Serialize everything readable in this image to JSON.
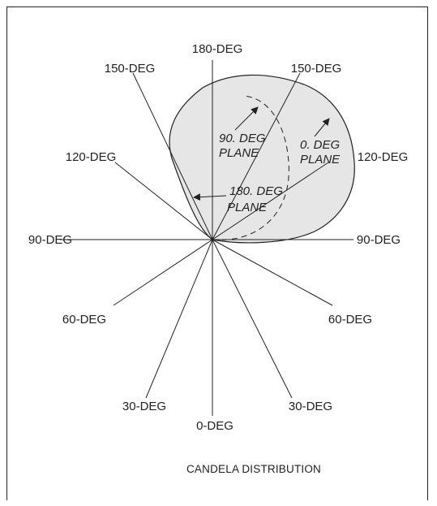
{
  "diagram": {
    "caption": "CANDELA DISTRIBUTION",
    "angle_labels": {
      "top": "180-DEG",
      "upper_left": "150-DEG",
      "upper_right": "150-DEG",
      "mid_upper_left": "120-DEG",
      "mid_upper_right": "120-DEG",
      "left": "90-DEG",
      "right": "90-DEG",
      "mid_lower_left": "60-DEG",
      "mid_lower_right": "60-DEG",
      "lower_left": "30-DEG",
      "lower_right": "30-DEG",
      "bottom": "0-DEG"
    },
    "planes": {
      "plane_90": [
        "90. DEG",
        "PLANE"
      ],
      "plane_0": [
        "0. DEG",
        "PLANE"
      ],
      "plane_180": [
        "180. DEG",
        "PLANE"
      ]
    },
    "colors": {
      "line": "#222222",
      "fill": "#e6e6e6"
    }
  }
}
